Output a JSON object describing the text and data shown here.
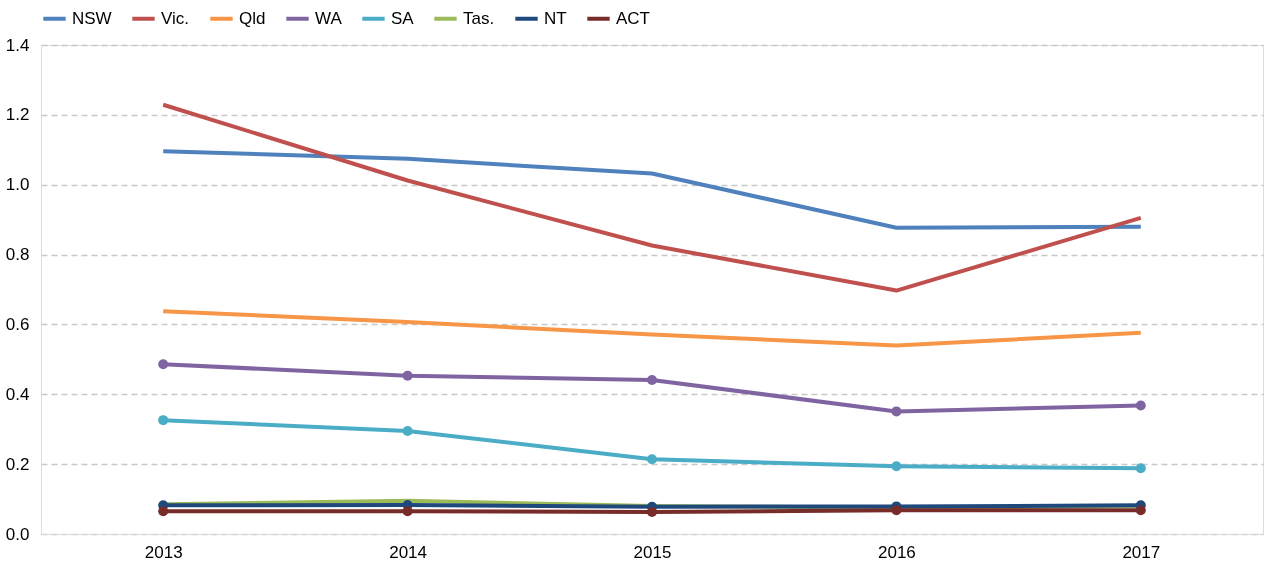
{
  "chart_data": {
    "type": "line",
    "categories": [
      "2013",
      "2014",
      "2015",
      "2016",
      "2017"
    ],
    "ylim": [
      0,
      1.4
    ],
    "yticks": [
      {
        "value": 0,
        "label": "0.0"
      },
      {
        "value": 0.2,
        "label": "0.2"
      },
      {
        "value": 0.4,
        "label": "0.4"
      },
      {
        "value": 0.6,
        "label": "0.6"
      },
      {
        "value": 0.8,
        "label": "0.8"
      },
      {
        "value": 1.0,
        "label": "1.0"
      },
      {
        "value": 1.2,
        "label": "1.2"
      },
      {
        "value": 1.4,
        "label": "1.4"
      }
    ],
    "grid": "y",
    "legend": "top",
    "line_style": "solid",
    "series": [
      {
        "name": "NSW",
        "color": "#4f81bd",
        "marker": "none",
        "values": [
          1.096,
          1.074,
          1.032,
          0.877,
          0.88
        ]
      },
      {
        "name": "Vic.",
        "color": "#c0504d",
        "marker": "none",
        "values": [
          1.229,
          1.012,
          0.826,
          0.697,
          0.905
        ]
      },
      {
        "name": "Qld",
        "color": "#f79646",
        "marker": "none",
        "values": [
          0.638,
          0.607,
          0.571,
          0.54,
          0.576
        ]
      },
      {
        "name": "WA",
        "color": "#8064a2",
        "marker": "circle",
        "values": [
          0.486,
          0.453,
          0.441,
          0.351,
          0.368
        ]
      },
      {
        "name": "SA",
        "color": "#4bacc6",
        "marker": "circle",
        "values": [
          0.326,
          0.295,
          0.214,
          0.194,
          0.188
        ]
      },
      {
        "name": "Tas.",
        "color": "#9bbb59",
        "marker": "none",
        "values": [
          0.085,
          0.095,
          0.08,
          0.075,
          0.08
        ]
      },
      {
        "name": "NT",
        "color": "#1f497d",
        "marker": "circle",
        "values": [
          0.082,
          0.083,
          0.078,
          0.079,
          0.082
        ]
      },
      {
        "name": "ACT",
        "color": "#772c2a",
        "marker": "circle",
        "values": [
          0.065,
          0.065,
          0.063,
          0.068,
          0.068
        ]
      }
    ]
  }
}
